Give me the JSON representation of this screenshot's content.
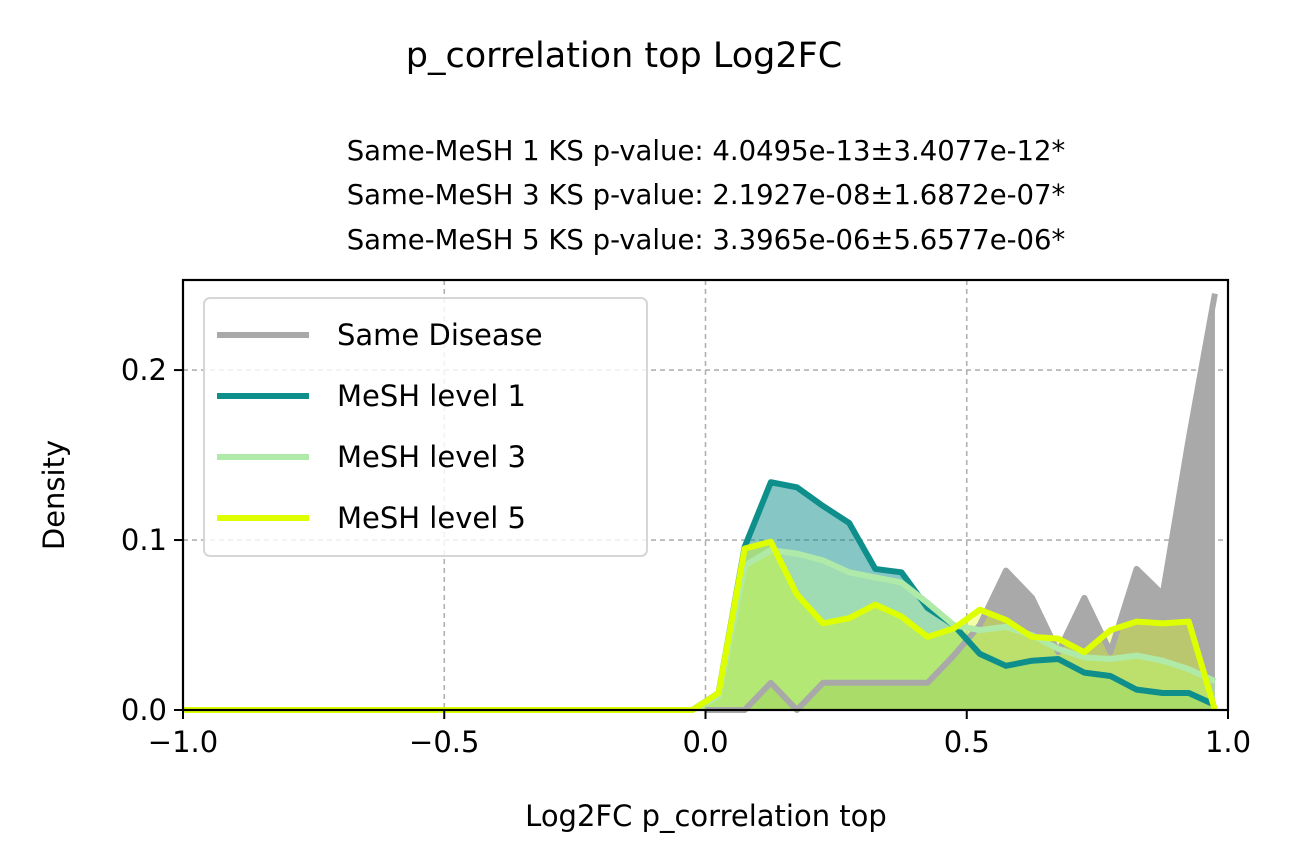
{
  "chart_data": {
    "type": "area",
    "suptitle": "p_correlation top Log2FC",
    "title_lines": [
      "Same-MeSH 1 KS p-value: 4.0495e-13±3.4077e-12*",
      "Same-MeSH 3 KS p-value: 2.1927e-08±1.6872e-07*",
      "Same-MeSH 5 KS p-value: 3.3965e-06±5.6577e-06*"
    ],
    "xlabel": "Log2FC p_correlation top",
    "ylabel": "Density",
    "xlim": [
      -1.0,
      1.0
    ],
    "ylim": [
      0.0,
      0.253
    ],
    "xticks": [
      -1.0,
      -0.5,
      0.0,
      0.5,
      1.0
    ],
    "xtick_labels": [
      "−1.0",
      "−0.5",
      "0.0",
      "0.5",
      "1.0"
    ],
    "yticks": [
      0.0,
      0.1,
      0.2
    ],
    "ytick_labels": [
      "0.0",
      "0.1",
      "0.2"
    ],
    "grid": true,
    "legend_position": "top-left",
    "series": [
      {
        "name": "Same Disease",
        "color": "#a9a9a9",
        "fill_opacity": 1.0,
        "points": [
          [
            0.0,
            0.0
          ],
          [
            0.025,
            0.0
          ],
          [
            0.075,
            0.0
          ],
          [
            0.125,
            0.016
          ],
          [
            0.175,
            0.0
          ],
          [
            0.225,
            0.016
          ],
          [
            0.275,
            0.016
          ],
          [
            0.325,
            0.016
          ],
          [
            0.375,
            0.016
          ],
          [
            0.425,
            0.016
          ],
          [
            0.475,
            0.032
          ],
          [
            0.525,
            0.05
          ],
          [
            0.575,
            0.082
          ],
          [
            0.625,
            0.066
          ],
          [
            0.675,
            0.034
          ],
          [
            0.725,
            0.066
          ],
          [
            0.775,
            0.034
          ],
          [
            0.825,
            0.083
          ],
          [
            0.875,
            0.068
          ],
          [
            0.925,
            0.16
          ],
          [
            0.975,
            0.245
          ]
        ]
      },
      {
        "name": "MeSH level 1",
        "color": "#0e8f8b",
        "fill_opacity": 0.5,
        "points": [
          [
            -1.0,
            0.0
          ],
          [
            -0.9,
            0.0
          ],
          [
            -0.5,
            0.0
          ],
          [
            -0.1,
            0.0
          ],
          [
            -0.025,
            0.0
          ],
          [
            0.025,
            0.01
          ],
          [
            0.075,
            0.096
          ],
          [
            0.125,
            0.134
          ],
          [
            0.175,
            0.131
          ],
          [
            0.225,
            0.12
          ],
          [
            0.275,
            0.11
          ],
          [
            0.325,
            0.083
          ],
          [
            0.375,
            0.081
          ],
          [
            0.425,
            0.06
          ],
          [
            0.475,
            0.05
          ],
          [
            0.525,
            0.033
          ],
          [
            0.575,
            0.026
          ],
          [
            0.625,
            0.029
          ],
          [
            0.675,
            0.03
          ],
          [
            0.725,
            0.022
          ],
          [
            0.775,
            0.02
          ],
          [
            0.825,
            0.012
          ],
          [
            0.875,
            0.01
          ],
          [
            0.925,
            0.01
          ],
          [
            0.975,
            0.003
          ]
        ]
      },
      {
        "name": "MeSH level 3",
        "color": "#b0eaa8",
        "fill_opacity": 0.6,
        "points": [
          [
            -1.0,
            0.0
          ],
          [
            -0.9,
            0.0
          ],
          [
            -0.5,
            0.0
          ],
          [
            -0.1,
            0.0
          ],
          [
            -0.025,
            0.0
          ],
          [
            0.025,
            0.008
          ],
          [
            0.075,
            0.085
          ],
          [
            0.125,
            0.094
          ],
          [
            0.175,
            0.092
          ],
          [
            0.225,
            0.088
          ],
          [
            0.275,
            0.081
          ],
          [
            0.325,
            0.078
          ],
          [
            0.375,
            0.075
          ],
          [
            0.425,
            0.063
          ],
          [
            0.475,
            0.05
          ],
          [
            0.525,
            0.047
          ],
          [
            0.575,
            0.049
          ],
          [
            0.625,
            0.044
          ],
          [
            0.675,
            0.036
          ],
          [
            0.725,
            0.031
          ],
          [
            0.775,
            0.03
          ],
          [
            0.825,
            0.032
          ],
          [
            0.875,
            0.029
          ],
          [
            0.925,
            0.024
          ],
          [
            0.975,
            0.017
          ]
        ]
      },
      {
        "name": "MeSH level 5",
        "color": "#ddff00",
        "fill_opacity": 0.35,
        "points": [
          [
            -1.0,
            0.0
          ],
          [
            -0.9,
            0.0
          ],
          [
            -0.5,
            0.0
          ],
          [
            -0.1,
            0.0
          ],
          [
            -0.025,
            0.0
          ],
          [
            0.025,
            0.01
          ],
          [
            0.075,
            0.095
          ],
          [
            0.125,
            0.099
          ],
          [
            0.175,
            0.068
          ],
          [
            0.225,
            0.051
          ],
          [
            0.275,
            0.054
          ],
          [
            0.325,
            0.062
          ],
          [
            0.375,
            0.055
          ],
          [
            0.425,
            0.043
          ],
          [
            0.475,
            0.048
          ],
          [
            0.525,
            0.059
          ],
          [
            0.575,
            0.053
          ],
          [
            0.625,
            0.043
          ],
          [
            0.675,
            0.042
          ],
          [
            0.725,
            0.034
          ],
          [
            0.775,
            0.047
          ],
          [
            0.825,
            0.052
          ],
          [
            0.875,
            0.051
          ],
          [
            0.925,
            0.052
          ],
          [
            0.975,
            0.0
          ]
        ]
      }
    ]
  }
}
